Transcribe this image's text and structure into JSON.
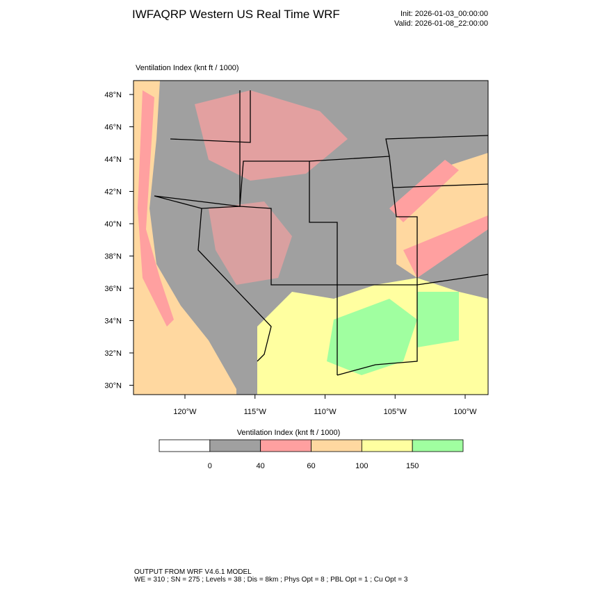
{
  "header": {
    "title": "IWFAQRP Western US Real Time WRF",
    "init": "Init: 2026-01-03_00:00:00",
    "valid": "Valid: 2026-01-08_22:00:00"
  },
  "map": {
    "title": "Ventilation Index   (knt ft / 1000)",
    "lat_labels": [
      "48°N",
      "46°N",
      "44°N",
      "42°N",
      "40°N",
      "38°N",
      "36°N",
      "34°N",
      "32°N",
      "30°N"
    ],
    "lon_labels": [
      "120°W",
      "115°W",
      "110°W",
      "105°W",
      "100°W"
    ]
  },
  "colorbar": {
    "title": "Ventilation Index   (knt ft / 1000)",
    "colors": [
      "#ffffff",
      "#a0a0a0",
      "#ffa0a0",
      "#ffd8a0",
      "#ffffa0",
      "#a0ffa0"
    ],
    "ticks": [
      0,
      40,
      60,
      100,
      150
    ]
  },
  "footer": {
    "line1": "OUTPUT FROM WRF V4.6.1 MODEL",
    "line2": "WE = 310 ; SN = 275 ; Levels = 38 ; Dis = 8km ; Phys Opt = 8 ; PBL Opt = 1 ; Cu Opt = 3"
  }
}
